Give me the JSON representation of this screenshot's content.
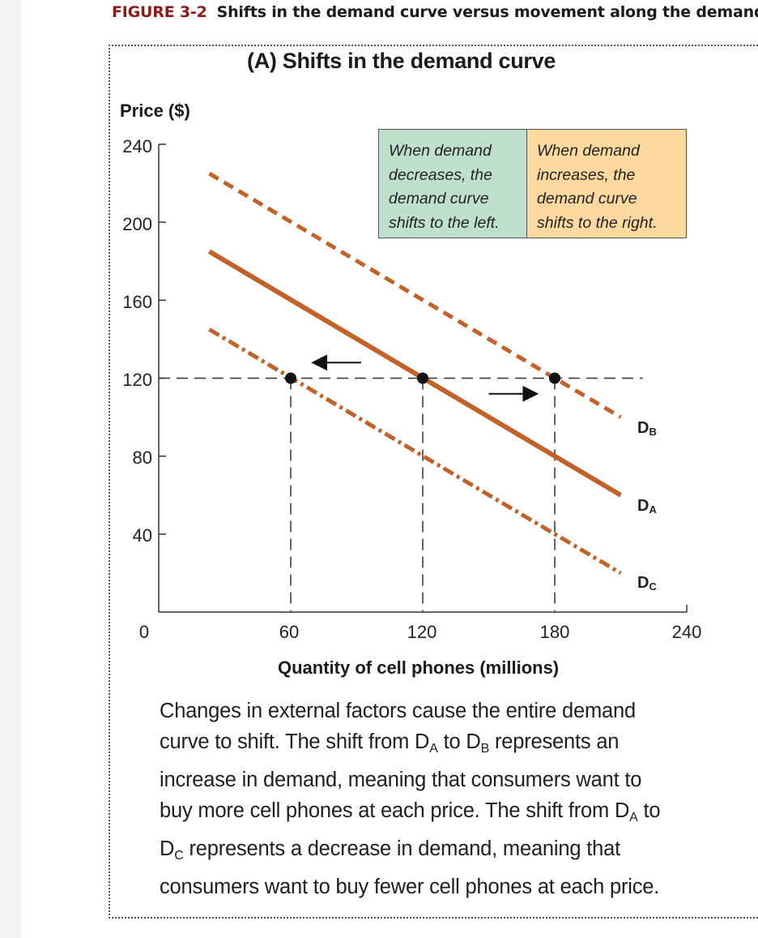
{
  "figure": {
    "label": "FIGURE 3-2",
    "title": "Shifts in the demand curve versus movement along the demand c"
  },
  "panel_title": "(A) Shifts in the demand curve",
  "boxes": {
    "left": {
      "lines": [
        "When demand",
        "decreases, the",
        "demand curve",
        "shifts to the left."
      ],
      "color": "#bfe0cd"
    },
    "right": {
      "lines": [
        "When demand",
        "increases, the",
        "demand curve",
        "shifts to the right."
      ],
      "color": "#fdd9a0"
    }
  },
  "curve_labels": {
    "b": {
      "main": "D",
      "sub": "B"
    },
    "a": {
      "main": "D",
      "sub": "A"
    },
    "c": {
      "main": "D",
      "sub": "C"
    }
  },
  "caption": {
    "p1": "Changes in external factors cause the entire demand curve to shift. The shift from D",
    "s1": "A",
    "p2": " to D",
    "s2": "B",
    "p3": " represents an increase in demand, meaning that consumers want to buy more cell phones at each price. The shift from D",
    "s3": "A",
    "p4": " to D",
    "s4": "C",
    "p5": " represents a decrease in demand, meaning that consumers want to buy fewer cell phones at each price."
  },
  "colors": {
    "curve": "#c0622a",
    "axis": "#333333",
    "guide": "#333333"
  },
  "chart_data": {
    "type": "line",
    "title": "(A) Shifts in the demand curve",
    "xlabel": "Quantity of cell phones (millions)",
    "ylabel": "Price ($)",
    "xlim": [
      0,
      240
    ],
    "ylim": [
      0,
      240
    ],
    "x_ticks": [
      "0",
      "60",
      "120",
      "180",
      "240"
    ],
    "y_ticks": [
      "40",
      "80",
      "120",
      "160",
      "200",
      "240"
    ],
    "grid": false,
    "series": [
      {
        "name": "DB",
        "style": "dashed",
        "points": [
          [
            23,
            225
          ],
          [
            210,
            100
          ]
        ]
      },
      {
        "name": "DA",
        "style": "solid",
        "points": [
          [
            23,
            185
          ],
          [
            210,
            60
          ]
        ]
      },
      {
        "name": "DC",
        "style": "dash-dot",
        "points": [
          [
            23,
            145
          ],
          [
            210,
            20
          ]
        ]
      }
    ],
    "reference_line": {
      "y": 120,
      "x_range": [
        0,
        220
      ],
      "style": "dashed"
    },
    "points": [
      {
        "x": 60,
        "y": 120,
        "curve": "DC"
      },
      {
        "x": 120,
        "y": 120,
        "curve": "DA"
      },
      {
        "x": 180,
        "y": 120,
        "curve": "DB"
      }
    ],
    "arrows": [
      {
        "direction": "left",
        "from": [
          92,
          128
        ],
        "to": [
          70,
          128
        ]
      },
      {
        "direction": "right",
        "from": [
          150,
          112
        ],
        "to": [
          172,
          112
        ]
      }
    ]
  }
}
